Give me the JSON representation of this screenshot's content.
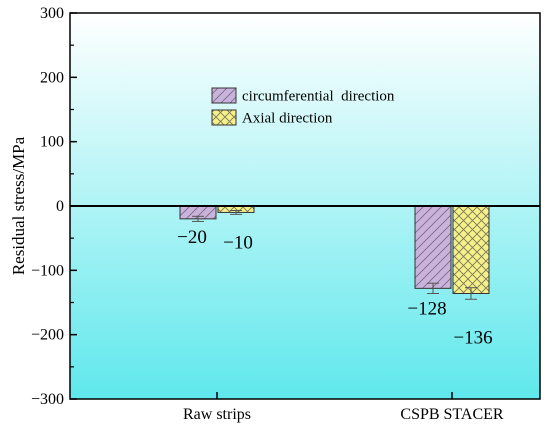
{
  "chart_data": {
    "type": "bar",
    "categories": [
      "Raw strips",
      "CSPB STACER"
    ],
    "series": [
      {
        "name": "circumferential  direction",
        "values": [
          -20,
          -128
        ],
        "errors": [
          4,
          8
        ],
        "labels": [
          "−20",
          "−128"
        ],
        "color": "#c9b3da",
        "pattern": "diagonal-hatch"
      },
      {
        "name": "Axial direction",
        "values": [
          -10,
          -136
        ],
        "errors": [
          3,
          9
        ],
        "labels": [
          "−10",
          "−136"
        ],
        "color": "#f5f08c",
        "pattern": "cross-hatch"
      }
    ],
    "title": "",
    "xlabel": "",
    "ylabel": "Residual stress/MPa",
    "ylim": [
      -300,
      300
    ],
    "yticks": [
      -300,
      -200,
      -100,
      0,
      100,
      200,
      300
    ],
    "ytick_labels": [
      "−300",
      "−200",
      "−100",
      "0",
      "100",
      "200",
      "300"
    ],
    "zero_line": true,
    "grid": false,
    "legend": "upper-center",
    "background": {
      "top": "#ffffff",
      "bottom": "#5fe8ec"
    }
  }
}
